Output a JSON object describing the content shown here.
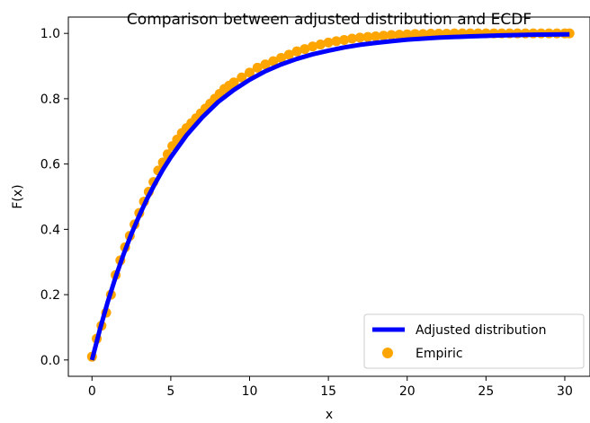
{
  "chart_data": {
    "type": "line",
    "title": "Comparison between adjusted distribution and ECDF",
    "xlabel": "x",
    "ylabel": "F(x)",
    "xlim": [
      -1.5,
      31.6
    ],
    "ylim": [
      -0.05,
      1.05
    ],
    "xticks": [
      0,
      5,
      10,
      15,
      20,
      25,
      30
    ],
    "yticks": [
      0.0,
      0.2,
      0.4,
      0.6,
      0.8,
      1.0
    ],
    "xtick_labels": [
      "0",
      "5",
      "10",
      "15",
      "20",
      "25",
      "30"
    ],
    "ytick_labels": [
      "0.0",
      "0.2",
      "0.4",
      "0.6",
      "0.8",
      "1.0"
    ],
    "grid": false,
    "legend_position": "lower-right",
    "series": [
      {
        "name": "Adjusted distribution",
        "kind": "line",
        "color": "#0000ff",
        "x": [
          0,
          0.5,
          1,
          1.5,
          2,
          2.5,
          3,
          3.5,
          4,
          4.5,
          5,
          6,
          7,
          8,
          9,
          10,
          11,
          12,
          13,
          14,
          15,
          16,
          17,
          18,
          19,
          20,
          22,
          24,
          26,
          28,
          30,
          30.3
        ],
        "y": [
          0.0,
          0.093,
          0.178,
          0.254,
          0.323,
          0.386,
          0.442,
          0.494,
          0.54,
          0.583,
          0.621,
          0.688,
          0.743,
          0.79,
          0.827,
          0.858,
          0.884,
          0.905,
          0.922,
          0.936,
          0.947,
          0.957,
          0.965,
          0.971,
          0.976,
          0.981,
          0.987,
          0.991,
          0.994,
          0.996,
          0.997,
          0.997
        ]
      },
      {
        "name": "Empiric",
        "kind": "scatter",
        "color": "#ffa500",
        "x": [
          0.0,
          0.3,
          0.6,
          0.9,
          1.2,
          1.5,
          1.8,
          2.1,
          2.4,
          2.7,
          3.0,
          3.3,
          3.6,
          3.9,
          4.2,
          4.5,
          4.8,
          5.1,
          5.4,
          5.7,
          6.0,
          6.3,
          6.6,
          6.9,
          7.2,
          7.5,
          7.8,
          8.1,
          8.4,
          8.7,
          9.0,
          9.5,
          10.0,
          10.5,
          11.0,
          11.5,
          12.0,
          12.5,
          13.0,
          13.5,
          14.0,
          14.5,
          15.0,
          15.5,
          16.0,
          16.5,
          17.0,
          17.5,
          18.0,
          18.5,
          19.0,
          19.5,
          20.0,
          20.5,
          21.0,
          21.5,
          22.0,
          22.5,
          23.0,
          23.5,
          24.0,
          24.5,
          25.0,
          25.5,
          26.0,
          26.5,
          27.0,
          27.5,
          28.0,
          28.5,
          29.0,
          29.5,
          30.0,
          30.3
        ],
        "y": [
          0.01,
          0.065,
          0.105,
          0.145,
          0.2,
          0.26,
          0.305,
          0.345,
          0.38,
          0.415,
          0.45,
          0.485,
          0.515,
          0.545,
          0.58,
          0.605,
          0.63,
          0.655,
          0.675,
          0.695,
          0.71,
          0.725,
          0.74,
          0.755,
          0.77,
          0.785,
          0.8,
          0.815,
          0.83,
          0.84,
          0.85,
          0.865,
          0.88,
          0.895,
          0.905,
          0.915,
          0.925,
          0.935,
          0.945,
          0.952,
          0.96,
          0.966,
          0.972,
          0.976,
          0.98,
          0.984,
          0.987,
          0.989,
          0.991,
          0.993,
          0.995,
          0.996,
          0.997,
          0.998,
          0.998,
          0.999,
          0.999,
          0.999,
          1.0,
          1.0,
          1.0,
          1.0,
          1.0,
          1.0,
          1.0,
          1.0,
          1.0,
          1.0,
          1.0,
          1.0,
          1.0,
          1.0,
          1.0,
          1.0
        ]
      }
    ]
  }
}
